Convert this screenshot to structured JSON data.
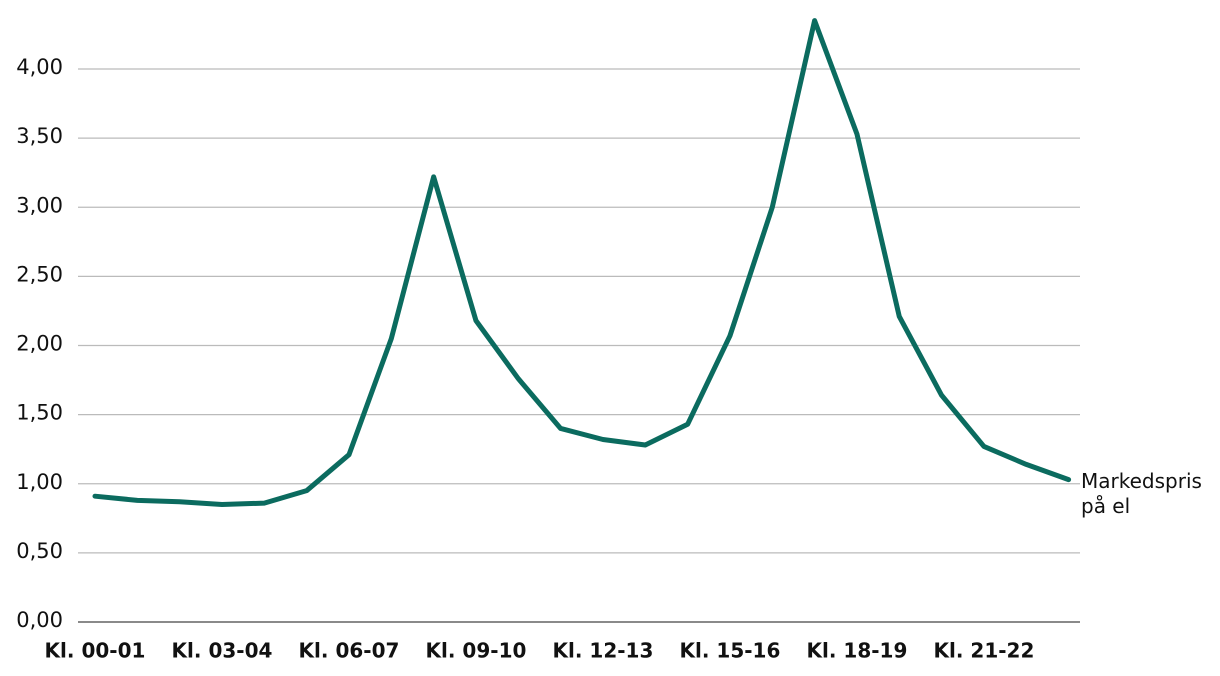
{
  "chart_data": {
    "type": "line",
    "categories": [
      "Kl. 00-01",
      null,
      null,
      "Kl. 03-04",
      null,
      null,
      "Kl. 06-07",
      null,
      null,
      "Kl. 09-10",
      null,
      null,
      "Kl. 12-13",
      null,
      null,
      "Kl. 15-16",
      null,
      null,
      "Kl. 18-19",
      null,
      null,
      "Kl. 21-22",
      null,
      null
    ],
    "series": [
      {
        "name": "Markedspris på el",
        "color": "#0b6b5f",
        "values": [
          0.91,
          0.88,
          0.87,
          0.85,
          0.86,
          0.95,
          1.21,
          2.05,
          3.22,
          2.18,
          1.76,
          1.4,
          1.32,
          1.28,
          1.43,
          2.07,
          3.0,
          4.35,
          3.53,
          2.21,
          1.64,
          1.27,
          1.14,
          1.03
        ]
      }
    ],
    "ylim": [
      0,
      4.4
    ],
    "yticks": [
      {
        "value": 0,
        "label": "0,00"
      },
      {
        "value": 0.5,
        "label": "0,50"
      },
      {
        "value": 1,
        "label": "1,00"
      },
      {
        "value": 1.5,
        "label": "1,50"
      },
      {
        "value": 2,
        "label": "2,00"
      },
      {
        "value": 2.5,
        "label": "2,50"
      },
      {
        "value": 3,
        "label": "3,00"
      },
      {
        "value": 3.5,
        "label": "3,50"
      },
      {
        "value": 4,
        "label": "4,00"
      }
    ],
    "grid": true
  }
}
